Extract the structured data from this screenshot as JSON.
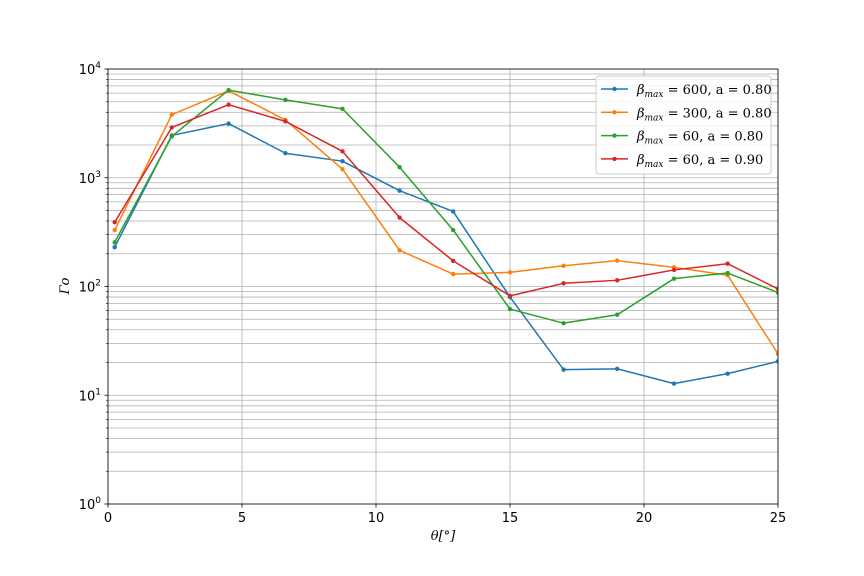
{
  "chart_data": {
    "type": "line",
    "title": "",
    "xlabel": "θ[°]",
    "ylabel": "Γo",
    "xlim": [
      0,
      25
    ],
    "ylim": [
      1,
      10000
    ],
    "yscale": "log",
    "grid": true,
    "legend_position": "top-right",
    "x_ticks": [
      0,
      5,
      10,
      15,
      20,
      25
    ],
    "y_ticks": [
      {
        "value": 1,
        "base": "10",
        "exp": "0"
      },
      {
        "value": 10,
        "base": "10",
        "exp": "1"
      },
      {
        "value": 100,
        "base": "10",
        "exp": "2"
      },
      {
        "value": 1000,
        "base": "10",
        "exp": "3"
      },
      {
        "value": 10000,
        "base": "10",
        "exp": "4"
      }
    ],
    "x": [
      0.25,
      2.38,
      4.5,
      6.62,
      8.75,
      10.88,
      12.88,
      15.0,
      17.0,
      19.0,
      21.12,
      23.12,
      25.0
    ],
    "series": [
      {
        "name": "β_max = 600, a = 0.80",
        "legend": {
          "sym": "β",
          "sub": "max",
          "rest": " = 600, a = 0.80"
        },
        "color": "#1f77b4",
        "values": [
          230,
          2450,
          3150,
          1680,
          1420,
          760,
          490,
          80,
          17.2,
          17.5,
          12.8,
          15.8,
          20.5
        ]
      },
      {
        "name": "β_max = 300, a = 0.80",
        "legend": {
          "sym": "β",
          "sub": "max",
          "rest": " = 300, a = 0.80"
        },
        "color": "#ff7f0e",
        "values": [
          330,
          3800,
          6300,
          3400,
          1200,
          215,
          130,
          135,
          155,
          173,
          150,
          127,
          24
        ]
      },
      {
        "name": "β_max = 60, a = 0.80",
        "legend": {
          "sym": "β",
          "sub": "max",
          "rest": " = 60, a = 0.80"
        },
        "color": "#2ca02c",
        "values": [
          255,
          2400,
          6400,
          5200,
          4300,
          1250,
          330,
          62,
          46,
          55,
          118,
          133,
          88
        ]
      },
      {
        "name": "β_max = 60, a = 0.90",
        "legend": {
          "sym": "β",
          "sub": "max",
          "rest": " = 60, a = 0.90"
        },
        "color": "#d62728",
        "values": [
          390,
          2900,
          4700,
          3300,
          1750,
          430,
          172,
          82,
          107,
          114,
          142,
          162,
          95
        ]
      }
    ]
  }
}
